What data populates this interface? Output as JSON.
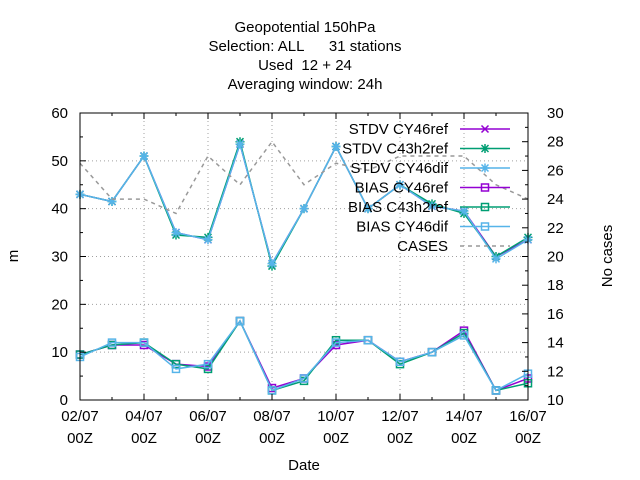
{
  "chart_data": {
    "type": "line",
    "title_lines": [
      "Geopotential 150hPa",
      "Selection: ALL      31 stations",
      "Used  12 + 24",
      "Averaging window: 24h"
    ],
    "xlabel": "Date",
    "ylabel": "m",
    "y2label": "No cases",
    "ylim": [
      0,
      60
    ],
    "y2lim": [
      10,
      30
    ],
    "yticks": [
      0,
      10,
      20,
      30,
      40,
      50,
      60
    ],
    "y2ticks": [
      10,
      12,
      14,
      16,
      18,
      20,
      22,
      24,
      26,
      28,
      30
    ],
    "xlim": [
      0,
      28
    ],
    "xticks": [
      {
        "x": 0,
        "label": [
          "02/07",
          "00Z"
        ]
      },
      {
        "x": 4,
        "label": [
          "04/07",
          "00Z"
        ]
      },
      {
        "x": 8,
        "label": [
          "06/07",
          "00Z"
        ]
      },
      {
        "x": 12,
        "label": [
          "08/07",
          "00Z"
        ]
      },
      {
        "x": 16,
        "label": [
          "10/07",
          "00Z"
        ]
      },
      {
        "x": 20,
        "label": [
          "12/07",
          "00Z"
        ]
      },
      {
        "x": 24,
        "label": [
          "14/07",
          "00Z"
        ]
      },
      {
        "x": 28,
        "label": [
          "16/07",
          "00Z"
        ]
      }
    ],
    "x": [
      0,
      2,
      4,
      6,
      8,
      10,
      12,
      14,
      16,
      18,
      20,
      22,
      24,
      26,
      28
    ],
    "legend_position": "top-right",
    "series": [
      {
        "name": "STDV CY46ref",
        "color": "#9400d3",
        "marker": "x",
        "axis": "y1",
        "dash": false,
        "values": [
          43,
          41.5,
          51,
          35,
          33.5,
          53.5,
          28.5,
          40,
          53,
          40,
          45,
          40.5,
          39.5,
          30,
          33.5
        ]
      },
      {
        "name": "STDV C43h2ref",
        "color": "#009e73",
        "marker": "star",
        "axis": "y1",
        "dash": false,
        "values": [
          43,
          41.5,
          51,
          34.5,
          34,
          54,
          28,
          40,
          53,
          40,
          45,
          41,
          39,
          30,
          34
        ]
      },
      {
        "name": "STDV CY46dif",
        "color": "#56b4e9",
        "marker": "star",
        "axis": "y1",
        "dash": false,
        "values": [
          43,
          41.5,
          51,
          35,
          33.5,
          53.5,
          28.5,
          40,
          53,
          40,
          45,
          40.5,
          39.5,
          29.5,
          33.5
        ]
      },
      {
        "name": "BIAS CY46ref",
        "color": "#9400d3",
        "marker": "square",
        "axis": "y1",
        "dash": false,
        "values": [
          9.5,
          11.5,
          11.5,
          7.5,
          7,
          16.5,
          2.5,
          4.5,
          11.5,
          12.5,
          8,
          10,
          14.5,
          2,
          4.5
        ]
      },
      {
        "name": "BIAS C43h2ref",
        "color": "#009e73",
        "marker": "square",
        "axis": "y1",
        "dash": false,
        "values": [
          9.5,
          11.5,
          12,
          7.5,
          6.5,
          16.5,
          2,
          4,
          12.5,
          12.5,
          7.5,
          10,
          14,
          2,
          3.5
        ]
      },
      {
        "name": "BIAS CY46dif",
        "color": "#56b4e9",
        "marker": "square",
        "axis": "y1",
        "dash": false,
        "values": [
          9,
          12,
          12,
          6.5,
          7.5,
          16.5,
          2,
          4.5,
          12,
          12.5,
          8,
          10,
          13.5,
          2,
          5.5
        ]
      },
      {
        "name": "CASES",
        "color": "#999999",
        "marker": "none",
        "axis": "y2",
        "dash": true,
        "values": [
          26.5,
          24,
          24,
          23,
          27,
          25,
          28,
          25,
          26.5,
          26,
          27,
          27,
          27,
          25,
          24
        ]
      }
    ]
  }
}
